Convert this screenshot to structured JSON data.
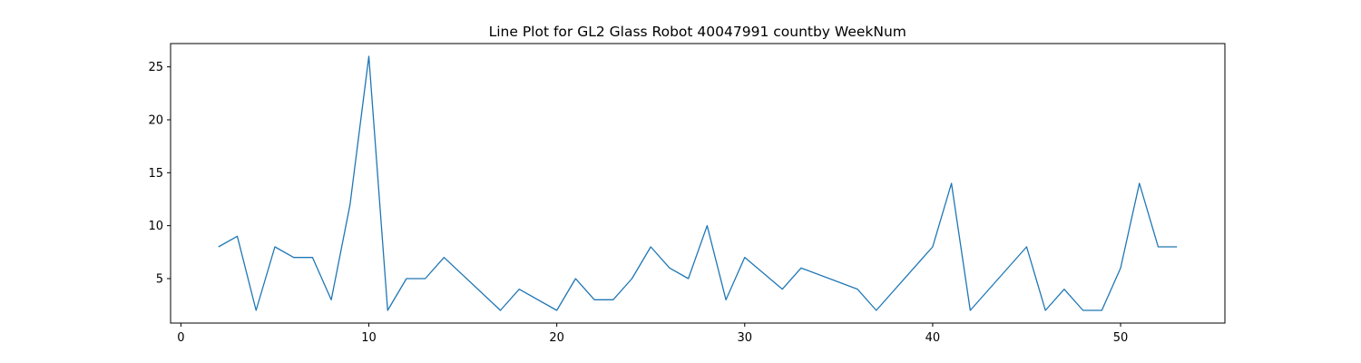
{
  "chart_data": {
    "type": "line",
    "title": "Line Plot for GL2 Glass Robot 40047991 countby WeekNum",
    "xlabel": "",
    "ylabel": "",
    "xlim": [
      -0.55,
      55.55
    ],
    "ylim": [
      0.8,
      27.2
    ],
    "xticks": [
      0,
      10,
      20,
      30,
      40,
      50
    ],
    "yticks": [
      5,
      10,
      15,
      20,
      25
    ],
    "grid": false,
    "legend": "none",
    "line_color": "#1f77b4",
    "series": [
      {
        "x": [
          2,
          3,
          4,
          5,
          6,
          7,
          8,
          9,
          10,
          11,
          12,
          13,
          14,
          17,
          18,
          20,
          21,
          22,
          23,
          24,
          25,
          26,
          27,
          28,
          29,
          30,
          32,
          33,
          36,
          37,
          40,
          41,
          42,
          45,
          46,
          47,
          48,
          49,
          50,
          51,
          52,
          53
        ],
        "values": [
          8,
          9,
          2,
          8,
          7,
          7,
          3,
          12,
          26,
          2,
          5,
          5,
          7,
          2,
          4,
          2,
          5,
          3,
          3,
          5,
          8,
          6,
          5,
          10,
          3,
          7,
          4,
          6,
          4,
          2,
          8,
          14,
          2,
          8,
          2,
          4,
          2,
          2,
          6,
          14,
          8,
          8
        ]
      }
    ]
  }
}
